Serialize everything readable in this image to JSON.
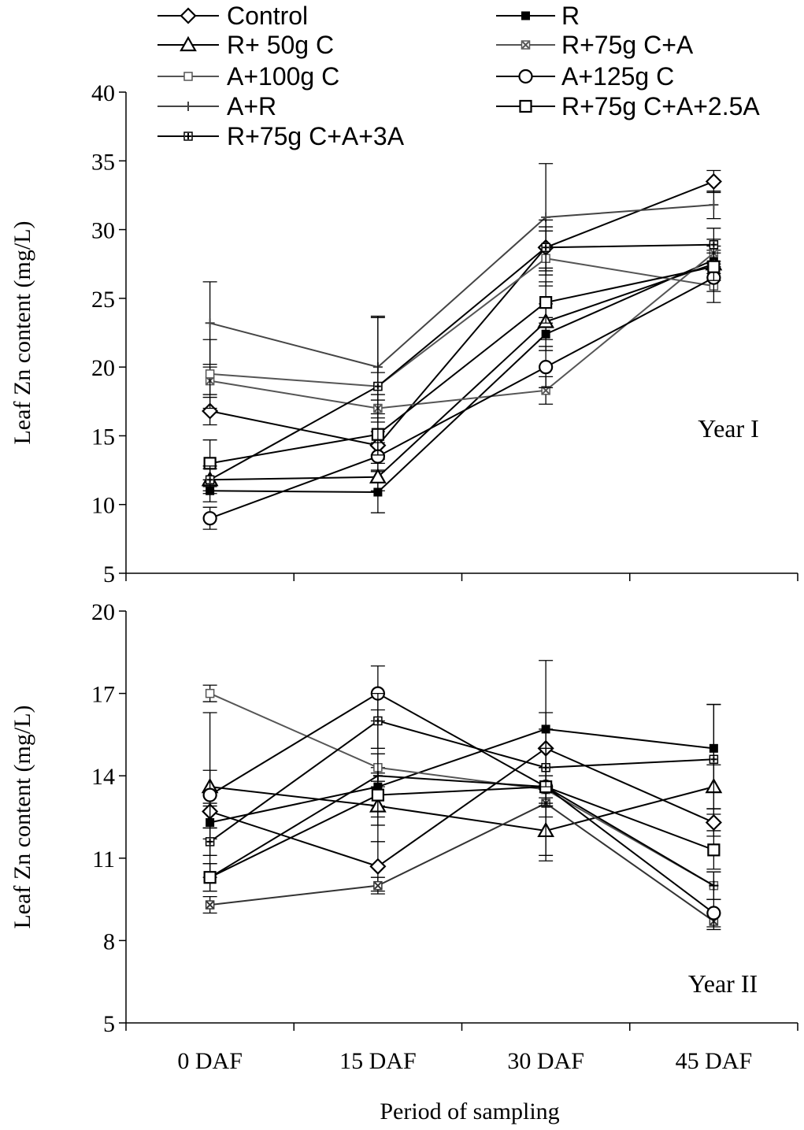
{
  "chart_data": [
    {
      "type": "line",
      "panel_label": "Year I",
      "ylabel": "Leaf Zn content (mg/L)",
      "ylim": [
        5,
        40
      ],
      "yticks": [
        5,
        10,
        15,
        20,
        25,
        30,
        35,
        40
      ],
      "categories": [
        "0 DAF",
        "15 DAF",
        "30 DAF",
        "45 DAF"
      ],
      "series": [
        {
          "name": "Control",
          "marker": "diamond-open",
          "color": "#000000",
          "values": [
            16.8,
            14.3,
            28.7,
            33.5
          ],
          "errors": [
            1.0,
            1.0,
            1.5,
            0.8
          ]
        },
        {
          "name": "R",
          "marker": "square-filled-small",
          "color": "#000000",
          "values": [
            11.0,
            10.9,
            22.4,
            27.8
          ],
          "errors": [
            0.8,
            1.5,
            1.2,
            1.0
          ]
        },
        {
          "name": "R+ 50g C",
          "marker": "triangle-open",
          "color": "#000000",
          "values": [
            11.8,
            12.0,
            23.3,
            27.5
          ],
          "errors": [
            0.8,
            1.0,
            1.3,
            1.0
          ]
        },
        {
          "name": "R+75g C+A",
          "marker": "x-box-small",
          "color": "#555555",
          "values": [
            19.0,
            17.0,
            18.3,
            28.3
          ],
          "errors": [
            1.0,
            1.0,
            1.0,
            1.0
          ]
        },
        {
          "name": "A+100g C",
          "marker": "square-open-small",
          "color": "#555555",
          "values": [
            19.5,
            18.6,
            27.9,
            25.9
          ],
          "errors": [
            2.5,
            1.0,
            2.0,
            1.2
          ]
        },
        {
          "name": "A+125g C",
          "marker": "circle-open",
          "color": "#000000",
          "values": [
            9.0,
            13.5,
            20.0,
            26.5
          ],
          "errors": [
            0.8,
            1.0,
            1.5,
            1.0
          ]
        },
        {
          "name": "A+R",
          "marker": "plus",
          "color": "#444444",
          "values": [
            23.2,
            20.0,
            30.9,
            31.8
          ],
          "errors": [
            3.0,
            3.7,
            3.9,
            1.0
          ]
        },
        {
          "name": "R+75g C+A+2.5A",
          "marker": "square-open",
          "color": "#000000",
          "values": [
            13.0,
            15.1,
            24.7,
            27.3
          ],
          "errors": [
            1.7,
            1.5,
            1.5,
            1.0
          ]
        },
        {
          "name": "R+75g C+A+3A",
          "marker": "cross-box-small",
          "color": "#000000",
          "values": [
            11.8,
            18.6,
            28.7,
            28.9
          ],
          "errors": [
            1.0,
            5.0,
            2.0,
            1.2
          ]
        }
      ]
    },
    {
      "type": "line",
      "panel_label": "Year II",
      "ylabel": "Leaf Zn content (mg/L)",
      "xlabel": "Period of sampling",
      "ylim": [
        5,
        20
      ],
      "yticks": [
        5,
        8,
        11,
        14,
        17,
        20
      ],
      "categories": [
        "0 DAF",
        "15 DAF",
        "30 DAF",
        "45 DAF"
      ],
      "series": [
        {
          "name": "Control",
          "marker": "diamond-open",
          "color": "#000000",
          "values": [
            12.7,
            10.7,
            15.0,
            12.3
          ],
          "errors": [
            0.6,
            0.9,
            0.7,
            0.5
          ]
        },
        {
          "name": "R",
          "marker": "square-filled-small",
          "color": "#000000",
          "values": [
            12.3,
            13.6,
            15.7,
            15.0
          ],
          "errors": [
            0.6,
            0.7,
            2.5,
            1.6
          ]
        },
        {
          "name": "R+ 50g C",
          "marker": "triangle-open",
          "color": "#000000",
          "values": [
            13.6,
            12.9,
            12.0,
            13.6
          ],
          "errors": [
            0.6,
            0.7,
            0.9,
            0.8
          ]
        },
        {
          "name": "R+75g C+A",
          "marker": "x-box-small",
          "color": "#333333",
          "values": [
            9.3,
            10.0,
            13.0,
            8.7
          ],
          "errors": [
            0.3,
            0.3,
            0.5,
            0.3
          ]
        },
        {
          "name": "A+100g C",
          "marker": "square-open-small",
          "color": "#555555",
          "values": [
            17.0,
            14.3,
            13.5,
            10.0
          ],
          "errors": [
            0.3,
            0.5,
            0.5,
            0.5
          ]
        },
        {
          "name": "A+125g C",
          "marker": "circle-open",
          "color": "#000000",
          "values": [
            13.3,
            17.0,
            13.6,
            9.0
          ],
          "errors": [
            3.0,
            1.0,
            0.7,
            0.5
          ]
        },
        {
          "name": "A+R",
          "marker": "plus",
          "color": "#000000",
          "values": [
            10.3,
            14.0,
            13.6,
            10.0
          ],
          "errors": [
            0.5,
            2.4,
            2.7,
            0.5
          ]
        },
        {
          "name": "R+75g C+A+2.5A",
          "marker": "square-open",
          "color": "#000000",
          "values": [
            10.3,
            13.3,
            13.6,
            11.3
          ],
          "errors": [
            0.5,
            0.8,
            0.7,
            0.7
          ]
        },
        {
          "name": "R+75g C+A+3A",
          "marker": "cross-box-small",
          "color": "#000000",
          "values": [
            11.6,
            16.0,
            14.3,
            14.6
          ],
          "errors": [
            0.5,
            1.0,
            0.7,
            2.0
          ]
        }
      ]
    }
  ]
}
